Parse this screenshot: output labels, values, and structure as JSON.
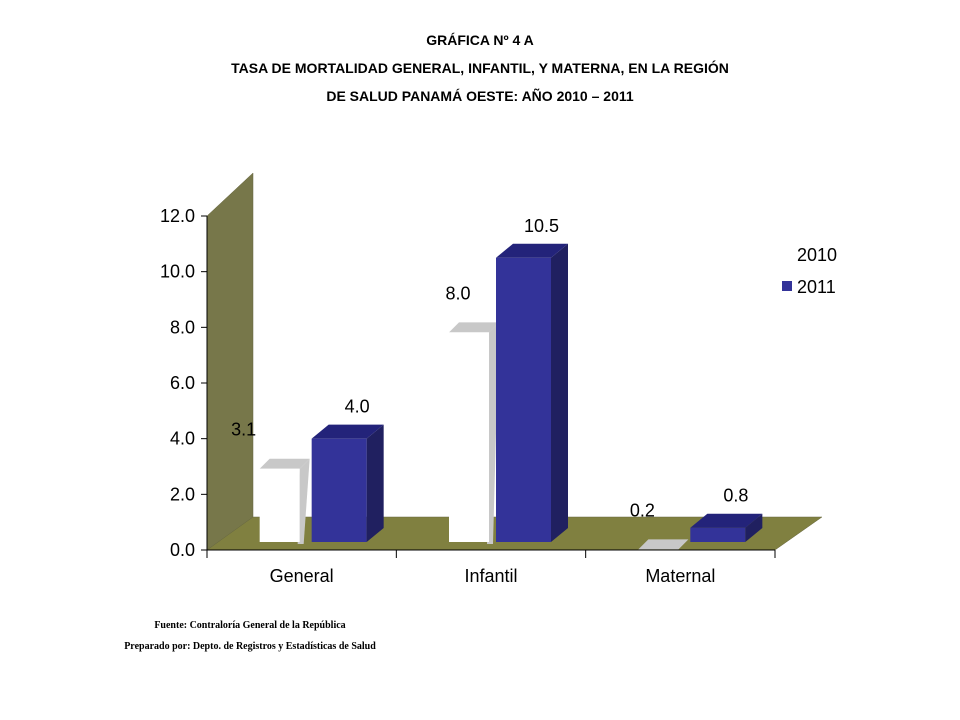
{
  "header": {
    "line1": "GRÁFICA Nº 4 A",
    "line2": "TASA DE MORTALIDAD GENERAL, INFANTIL, Y MATERNA, EN LA REGIÓN",
    "line3": "DE SALUD PANAMÁ OESTE: AÑO 2010 – 2011"
  },
  "footer": {
    "source": "Fuente: Contraloría General de la República",
    "prepared": "Preparado por: Depto. de Registros y Estadísticas de Salud"
  },
  "colors": {
    "wall": "#77774a",
    "floor": "#808040",
    "series_2010": "#ffffff",
    "series_2010_shadow": "#c8c8c8",
    "series_2011": "#333399",
    "series_2011_side": "#202060",
    "series_2011_top": "#23237a"
  },
  "chart_data": {
    "type": "bar",
    "categories": [
      "General",
      "Infantil",
      "Maternal"
    ],
    "series": [
      {
        "name": "2010",
        "values": [
          3.1,
          8.0,
          0.2
        ],
        "labels": [
          "3.1",
          "8.0",
          "0.2"
        ]
      },
      {
        "name": "2011",
        "values": [
          4.0,
          10.5,
          0.8
        ],
        "labels": [
          "4.0",
          "10.5",
          "0.8"
        ]
      }
    ],
    "yticks": [
      "0.0",
      "2.0",
      "4.0",
      "6.0",
      "8.0",
      "10.0",
      "12.0"
    ],
    "ylim": [
      0,
      12
    ],
    "legend_position": "right",
    "grid": false
  }
}
